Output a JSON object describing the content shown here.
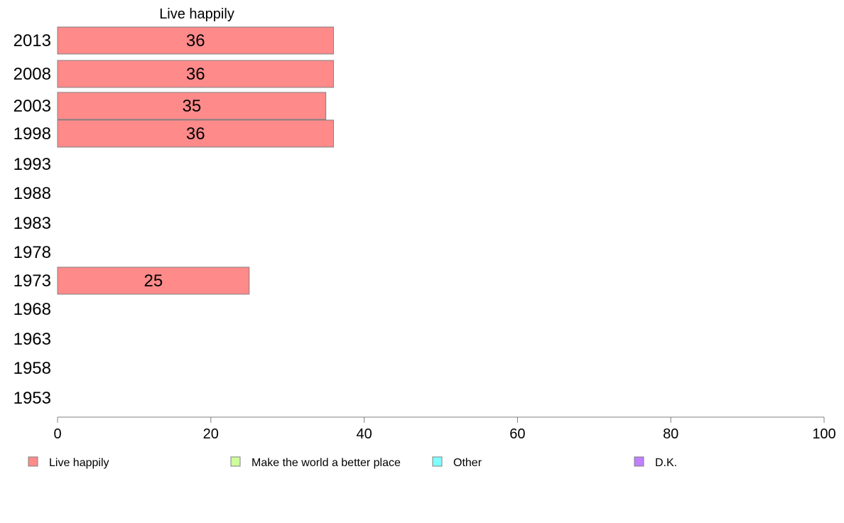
{
  "chart_data": {
    "type": "bar",
    "orientation": "horizontal",
    "title": "Live happily",
    "categories": [
      "2013",
      "2008",
      "2003",
      "1998",
      "1993",
      "1988",
      "1983",
      "1978",
      "1973",
      "1968",
      "1963",
      "1958",
      "1953"
    ],
    "series": [
      {
        "name": "Live happily",
        "values": [
          36,
          36,
          35,
          36,
          null,
          null,
          null,
          null,
          25,
          null,
          null,
          null,
          null
        ]
      }
    ],
    "data_labels": [
      "36",
      "36",
      "35",
      "36",
      "",
      "",
      "",
      "",
      "25",
      "",
      "",
      "",
      ""
    ],
    "xlim": [
      0,
      100
    ],
    "xticks": [
      0,
      20,
      40,
      60,
      80,
      100
    ],
    "grid": false,
    "legend": {
      "placement": "bottom",
      "entries": [
        {
          "label": "Live happily",
          "color": "#ff8a8a"
        },
        {
          "label": "Make the world a better place",
          "color": "#ccff99"
        },
        {
          "label": "Other",
          "color": "#80ffff"
        },
        {
          "label": "D.K.",
          "color": "#c080ff"
        }
      ]
    },
    "colors": {
      "bar": "#ff8a8a",
      "bar_border": "#808080",
      "axis": "#808080"
    }
  }
}
